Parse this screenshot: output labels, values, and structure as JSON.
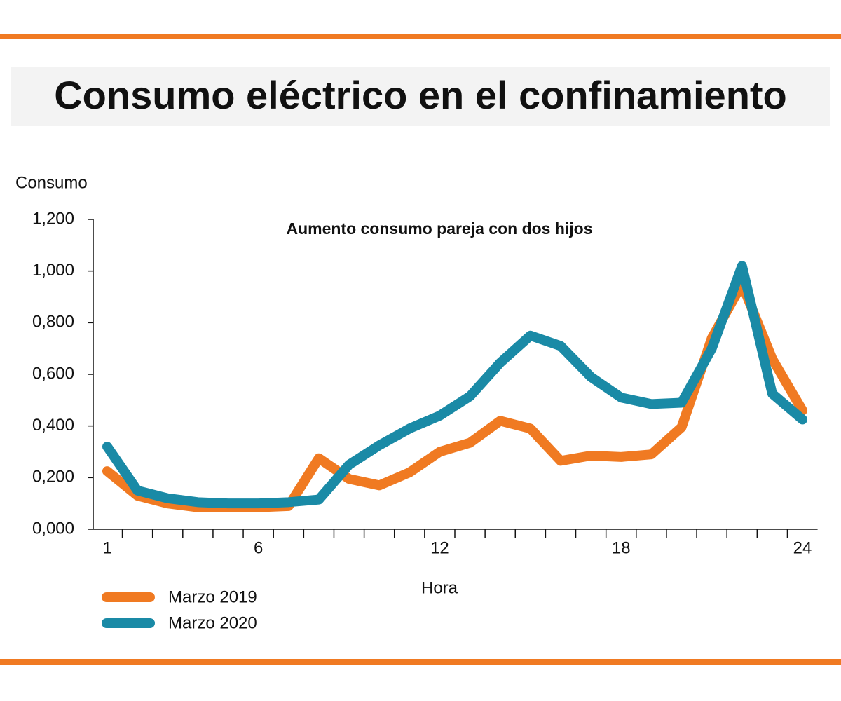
{
  "chart_data": {
    "type": "line",
    "title": "Consumo eléctrico en el confinamiento",
    "subtitle": "Aumento consumo pareja con dos hijos",
    "y_label": "Consumo",
    "x_label": "Hora",
    "x": [
      1,
      2,
      3,
      4,
      5,
      6,
      7,
      8,
      9,
      10,
      11,
      12,
      13,
      14,
      15,
      16,
      17,
      18,
      19,
      20,
      21,
      22,
      23,
      24
    ],
    "series": [
      {
        "name": "Marzo 2019",
        "color": "#f07a22",
        "values": [
          0.225,
          0.13,
          0.1,
          0.085,
          0.085,
          0.085,
          0.09,
          0.275,
          0.195,
          0.17,
          0.22,
          0.3,
          0.335,
          0.42,
          0.39,
          0.265,
          0.285,
          0.28,
          0.29,
          0.395,
          0.74,
          0.95,
          0.66,
          0.46
        ]
      },
      {
        "name": "Marzo 2020",
        "color": "#1a8aa6",
        "values": [
          0.32,
          0.15,
          0.12,
          0.105,
          0.1,
          0.1,
          0.105,
          0.115,
          0.25,
          0.325,
          0.39,
          0.44,
          0.515,
          0.645,
          0.75,
          0.71,
          0.59,
          0.51,
          0.485,
          0.49,
          0.7,
          1.02,
          0.525,
          0.425
        ]
      }
    ],
    "xlim": [
      0.5,
      24.5
    ],
    "xticks": [
      1,
      6,
      12,
      18,
      24
    ],
    "ylim": [
      0,
      1.2
    ],
    "yticks": [
      {
        "value": 0,
        "label": "0,000"
      },
      {
        "value": 0.2,
        "label": "0,200"
      },
      {
        "value": 0.4,
        "label": "0,400"
      },
      {
        "value": 0.6,
        "label": "0,600"
      },
      {
        "value": 0.8,
        "label": "0,800"
      },
      {
        "value": 1,
        "label": "1,000"
      },
      {
        "value": 1.2,
        "label": "1,200"
      }
    ],
    "grid": false,
    "legend": "bottom-left"
  }
}
